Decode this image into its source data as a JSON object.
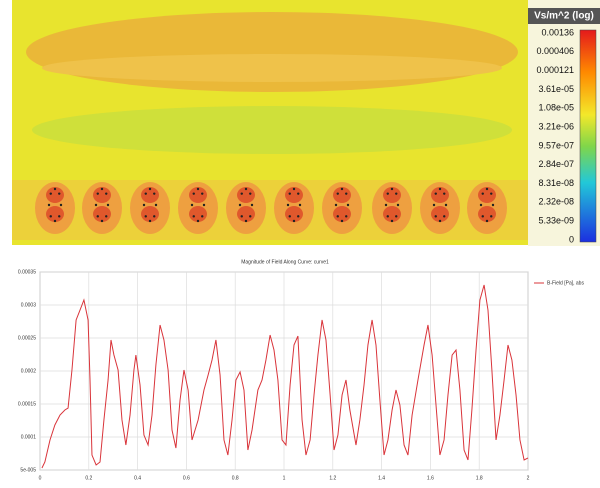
{
  "field_plot": {
    "legend_title": "Vs/m^2 (log)",
    "legend_labels": [
      "0.00136",
      "0.000406",
      "0.000121",
      "3.61e-05",
      "1.08e-05",
      "3.21e-06",
      "9.57e-07",
      "2.84e-07",
      "8.31e-08",
      "2.32e-08",
      "5.33e-09",
      "0"
    ]
  },
  "chart_data": {
    "type": "line",
    "title": "Magnitude of Field Along Curve: curve1",
    "x": [
      0.008,
      0.02,
      0.041,
      0.061,
      0.082,
      0.102,
      0.115,
      0.131,
      0.148,
      0.164,
      0.18,
      0.197,
      0.205,
      0.213,
      0.23,
      0.246,
      0.262,
      0.279,
      0.291,
      0.303,
      0.32,
      0.336,
      0.352,
      0.369,
      0.385,
      0.393,
      0.41,
      0.426,
      0.443,
      0.459,
      0.475,
      0.492,
      0.508,
      0.525,
      0.541,
      0.557,
      0.574,
      0.59,
      0.607,
      0.623,
      0.648,
      0.672,
      0.689,
      0.705,
      0.721,
      0.738,
      0.754,
      0.77,
      0.787,
      0.803,
      0.82,
      0.836,
      0.852,
      0.869,
      0.893,
      0.91,
      0.926,
      0.943,
      0.959,
      0.975,
      0.992,
      1.008,
      1.025,
      1.041,
      1.057,
      1.074,
      1.09,
      1.107,
      1.123,
      1.139,
      1.156,
      1.172,
      1.189,
      1.205,
      1.221,
      1.238,
      1.254,
      1.27,
      1.295,
      1.311,
      1.328,
      1.344,
      1.361,
      1.377,
      1.393,
      1.41,
      1.426,
      1.443,
      1.459,
      1.475,
      1.492,
      1.508,
      1.525,
      1.549,
      1.574,
      1.59,
      1.607,
      1.623,
      1.639,
      1.656,
      1.672,
      1.689,
      1.705,
      1.721,
      1.738,
      1.754,
      1.77,
      1.787,
      1.803,
      1.82,
      1.836,
      1.852,
      1.869,
      1.885,
      1.902,
      1.918,
      1.934,
      1.951,
      1.967,
      1.984,
      2.0
    ],
    "series": [
      {
        "name": "B-Field [Pa], abs",
        "color": "#d9343a",
        "values": [
          5.3e-05,
          6.21e-05,
          9.55e-05,
          0.0001182,
          0.0001333,
          0.0001409,
          0.0001439,
          0.0002015,
          0.0002773,
          0.0002924,
          0.0003076,
          0.0002773,
          0.0001864,
          7.27e-05,
          5.76e-05,
          6.21e-05,
          0.0001258,
          0.0001864,
          0.000247,
          0.0002242,
          0.0002015,
          0.0001258,
          8.79e-05,
          0.0001333,
          0.0002015,
          0.0002242,
          0.0001788,
          0.000103,
          8.79e-05,
          0.0001333,
          0.0002091,
          0.0002697,
          0.000247,
          0.0002015,
          0.0001106,
          8.33e-05,
          0.0001561,
          0.0002015,
          0.0001712,
          9.55e-05,
          0.0001258,
          0.0001712,
          0.0001939,
          0.0002167,
          0.000247,
          0.0001939,
          9.55e-05,
          7.27e-05,
          0.0001258,
          0.0001864,
          0.0001985,
          0.0001712,
          8.03e-05,
          0.0001106,
          0.0001712,
          0.0001864,
          0.0002167,
          0.0002545,
          0.0002318,
          0.0001864,
          9.55e-05,
          8.79e-05,
          0.0001788,
          0.0002394,
          0.000253,
          0.0001258,
          7.27e-05,
          9.55e-05,
          0.0001636,
          0.0002242,
          0.0002773,
          0.000247,
          0.0001636,
          8.03e-05,
          0.000103,
          0.0001636,
          0.0001864,
          0.0001409,
          8.79e-05,
          0.0001258,
          0.0001788,
          0.0002394,
          0.0002773,
          0.0002394,
          0.0001561,
          7.27e-05,
          9.55e-05,
          0.0001409,
          0.0001712,
          0.0001485,
          8.79e-05,
          7.27e-05,
          0.0001333,
          0.0001864,
          0.0002394,
          0.0002697,
          0.0002242,
          0.0001485,
          7.27e-05,
          9.55e-05,
          0.0001636,
          0.0002242,
          0.0002318,
          0.0001712,
          8.03e-05,
          6.52e-05,
          0.0001409,
          0.0002318,
          0.0003076,
          0.0003303,
          0.0002924,
          0.0002015,
          9.55e-05,
          0.0001333,
          0.0001864,
          0.0002394,
          0.0002167,
          0.0001636,
          9.55e-05,
          6.52e-05,
          6.82e-05
        ]
      }
    ],
    "xlim": [
      0,
      2
    ],
    "xticks": [
      0,
      0.2,
      0.4,
      0.6,
      0.8,
      1,
      1.2,
      1.4,
      1.6,
      1.8,
      2
    ],
    "ylim": [
      5e-05,
      0.00035
    ],
    "yticks": [
      {
        "value": 5e-05,
        "label": "5e-005"
      },
      0.0001,
      0.00015,
      0.0002,
      0.00025,
      0.0003,
      0.00035
    ],
    "grid": true,
    "legend": "right"
  }
}
